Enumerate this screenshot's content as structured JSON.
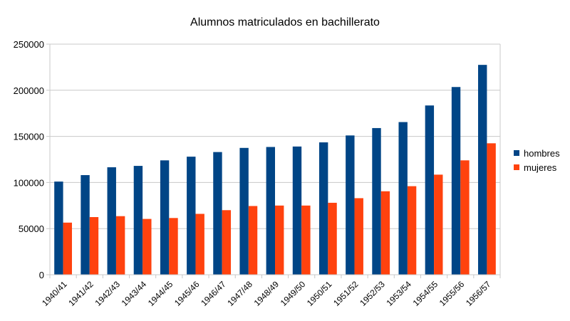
{
  "chart_data": {
    "type": "bar",
    "title": "Alumnos matriculados en bachillerato",
    "xlabel": "",
    "ylabel": "",
    "ylim": [
      0,
      250000
    ],
    "yticks": [
      0,
      50000,
      100000,
      150000,
      200000,
      250000
    ],
    "grid": true,
    "legend_placement": "right",
    "categories": [
      "1940/41",
      "1941/42",
      "1942/43",
      "1943/44",
      "1944/45",
      "1945/46",
      "1946/47",
      "1947/48",
      "1948/49",
      "1949/50",
      "1950/51",
      "1951/52",
      "1952/53",
      "1953/54",
      "1954/55",
      "1955/56",
      "1956/57"
    ],
    "series": [
      {
        "name": "hombres",
        "color": "#004586",
        "values": [
          101000,
          108000,
          116500,
          118000,
          124000,
          128000,
          133000,
          137500,
          138500,
          139000,
          143500,
          151000,
          159000,
          165500,
          183500,
          203500,
          227500
        ]
      },
      {
        "name": "mujeres",
        "color": "#ff420e",
        "values": [
          56500,
          62500,
          63500,
          60500,
          61500,
          66000,
          70000,
          74500,
          75000,
          75000,
          78000,
          83000,
          90500,
          96000,
          108500,
          124000,
          142500
        ]
      }
    ]
  }
}
